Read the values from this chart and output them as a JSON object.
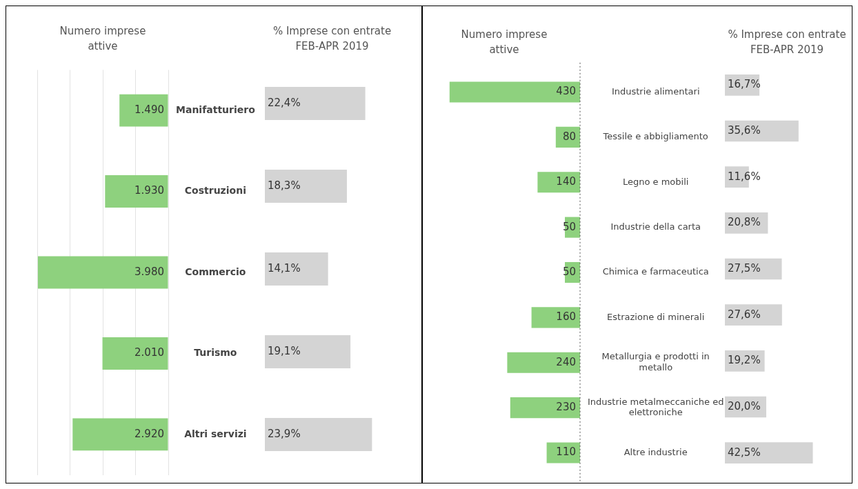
{
  "chart_data": [
    {
      "type": "bar",
      "orientation": "horizontal",
      "title": "Numero imprese attive",
      "categories": [
        "Manifatturiero",
        "Costruzioni",
        "Commercio",
        "Turismo",
        "Altri servizi"
      ],
      "values": [
        1490,
        1930,
        3980,
        2010,
        2920
      ],
      "value_labels": [
        "1.490",
        "1.930",
        "3.980",
        "2.010",
        "2.920"
      ],
      "color": "#8ed17e",
      "grid": "x",
      "tick_labels": "y"
    },
    {
      "type": "bar",
      "orientation": "horizontal",
      "title": "% Imprese con entrate FEB-APR 2019",
      "categories": [
        null,
        null,
        null,
        null,
        null
      ],
      "values": [
        22.4,
        18.3,
        14.1,
        19.1,
        23.9
      ],
      "value_labels": [
        "22,4%",
        "18,3%",
        "14,1%",
        "19,1%",
        "23,9%"
      ],
      "color": "#d4d4d4",
      "tick_labels": false
    },
    {
      "type": "bar",
      "orientation": "horizontal",
      "title": "Numero imprese attive",
      "categories": [
        "Industrie alimentari",
        "Tessile e abbigliamento",
        "Legno e mobili",
        "Industrie della carta",
        "Chimica e farmaceutica",
        "Estrazione di minerali",
        "Metallurgia e prodotti in metallo",
        "Industrie metalmeccaniche ed elettroniche",
        "Altre industrie"
      ],
      "values": [
        430,
        80,
        140,
        50,
        50,
        160,
        240,
        230,
        110
      ],
      "value_labels": [
        "430",
        "80",
        "140",
        "50",
        "50",
        "160",
        "240",
        "230",
        "110"
      ],
      "color": "#8ed17e",
      "grid": false,
      "tick_labels": "y",
      "ref_lines": [
        {
          "axis": "x",
          "value": 0,
          "color": "#555555",
          "line_style": "dotted"
        }
      ]
    },
    {
      "type": "bar",
      "orientation": "horizontal",
      "title": "% Imprese con entrate FEB-APR 2019",
      "categories": [
        null,
        null,
        null,
        null,
        null,
        null,
        null,
        null,
        null
      ],
      "values": [
        16.7,
        35.6,
        11.6,
        20.8,
        27.5,
        27.6,
        19.2,
        20.0,
        42.5
      ],
      "value_labels": [
        "16,7%",
        "35,6%",
        "11,6%",
        "20,8%",
        "27,5%",
        "27,6%",
        "19,2%",
        "20,0%",
        "42,5%"
      ],
      "color": "#d4d4d4",
      "tick_labels": false
    }
  ]
}
